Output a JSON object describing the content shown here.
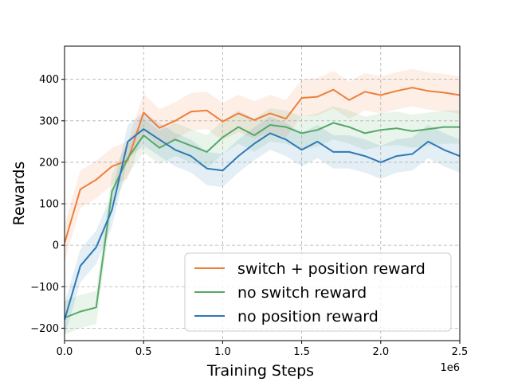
{
  "chart_data": {
    "type": "line",
    "title": "",
    "xlabel": "Training Steps",
    "ylabel": "Rewards",
    "x_offset_text": "1e6",
    "xlim": [
      0,
      2.5
    ],
    "ylim": [
      -230,
      480
    ],
    "x_ticks": [
      0.0,
      0.5,
      1.0,
      1.5,
      2.0,
      2.5
    ],
    "x_tick_labels": [
      "0.0",
      "0.5",
      "1.0",
      "1.5",
      "2.0",
      "2.5"
    ],
    "y_ticks": [
      -200,
      -100,
      0,
      100,
      200,
      300,
      400
    ],
    "y_tick_labels": [
      "−200",
      "−100",
      "0",
      "100",
      "200",
      "300",
      "400"
    ],
    "grid": true,
    "grid_style": "dashed",
    "legend_position": "lower-right",
    "x_units": "training steps (millions)",
    "series": [
      {
        "name": "switch + position reward",
        "color": "#ee7f3b",
        "band_halfwidth": 45,
        "x": [
          0.0,
          0.1,
          0.2,
          0.3,
          0.4,
          0.5,
          0.6,
          0.7,
          0.8,
          0.9,
          1.0,
          1.1,
          1.2,
          1.3,
          1.4,
          1.5,
          1.6,
          1.7,
          1.8,
          1.9,
          2.0,
          2.1,
          2.2,
          2.3,
          2.4,
          2.5
        ],
        "values": [
          5,
          135,
          158,
          190,
          205,
          320,
          283,
          300,
          322,
          325,
          298,
          318,
          302,
          318,
          305,
          355,
          358,
          375,
          350,
          370,
          362,
          372,
          380,
          372,
          368,
          362
        ]
      },
      {
        "name": "no switch reward",
        "color": "#55a868",
        "band_halfwidth": 40,
        "x": [
          0.0,
          0.1,
          0.2,
          0.3,
          0.4,
          0.5,
          0.6,
          0.7,
          0.8,
          0.9,
          1.0,
          1.1,
          1.2,
          1.3,
          1.4,
          1.5,
          1.6,
          1.7,
          1.8,
          1.9,
          2.0,
          2.1,
          2.2,
          2.3,
          2.4,
          2.5
        ],
        "values": [
          -175,
          -160,
          -150,
          130,
          210,
          265,
          235,
          255,
          240,
          225,
          260,
          285,
          265,
          290,
          285,
          270,
          278,
          295,
          285,
          270,
          278,
          282,
          275,
          280,
          285,
          285
        ]
      },
      {
        "name": "no position reward",
        "color": "#2e79b5",
        "band_halfwidth": 40,
        "x": [
          0.0,
          0.1,
          0.2,
          0.3,
          0.4,
          0.5,
          0.6,
          0.7,
          0.8,
          0.9,
          1.0,
          1.1,
          1.2,
          1.3,
          1.4,
          1.5,
          1.6,
          1.7,
          1.8,
          1.9,
          2.0,
          2.1,
          2.2,
          2.3,
          2.4,
          2.5
        ],
        "values": [
          -180,
          -50,
          -5,
          85,
          250,
          280,
          255,
          230,
          215,
          185,
          180,
          215,
          245,
          270,
          255,
          230,
          250,
          225,
          225,
          215,
          200,
          215,
          220,
          250,
          230,
          215
        ]
      }
    ]
  }
}
